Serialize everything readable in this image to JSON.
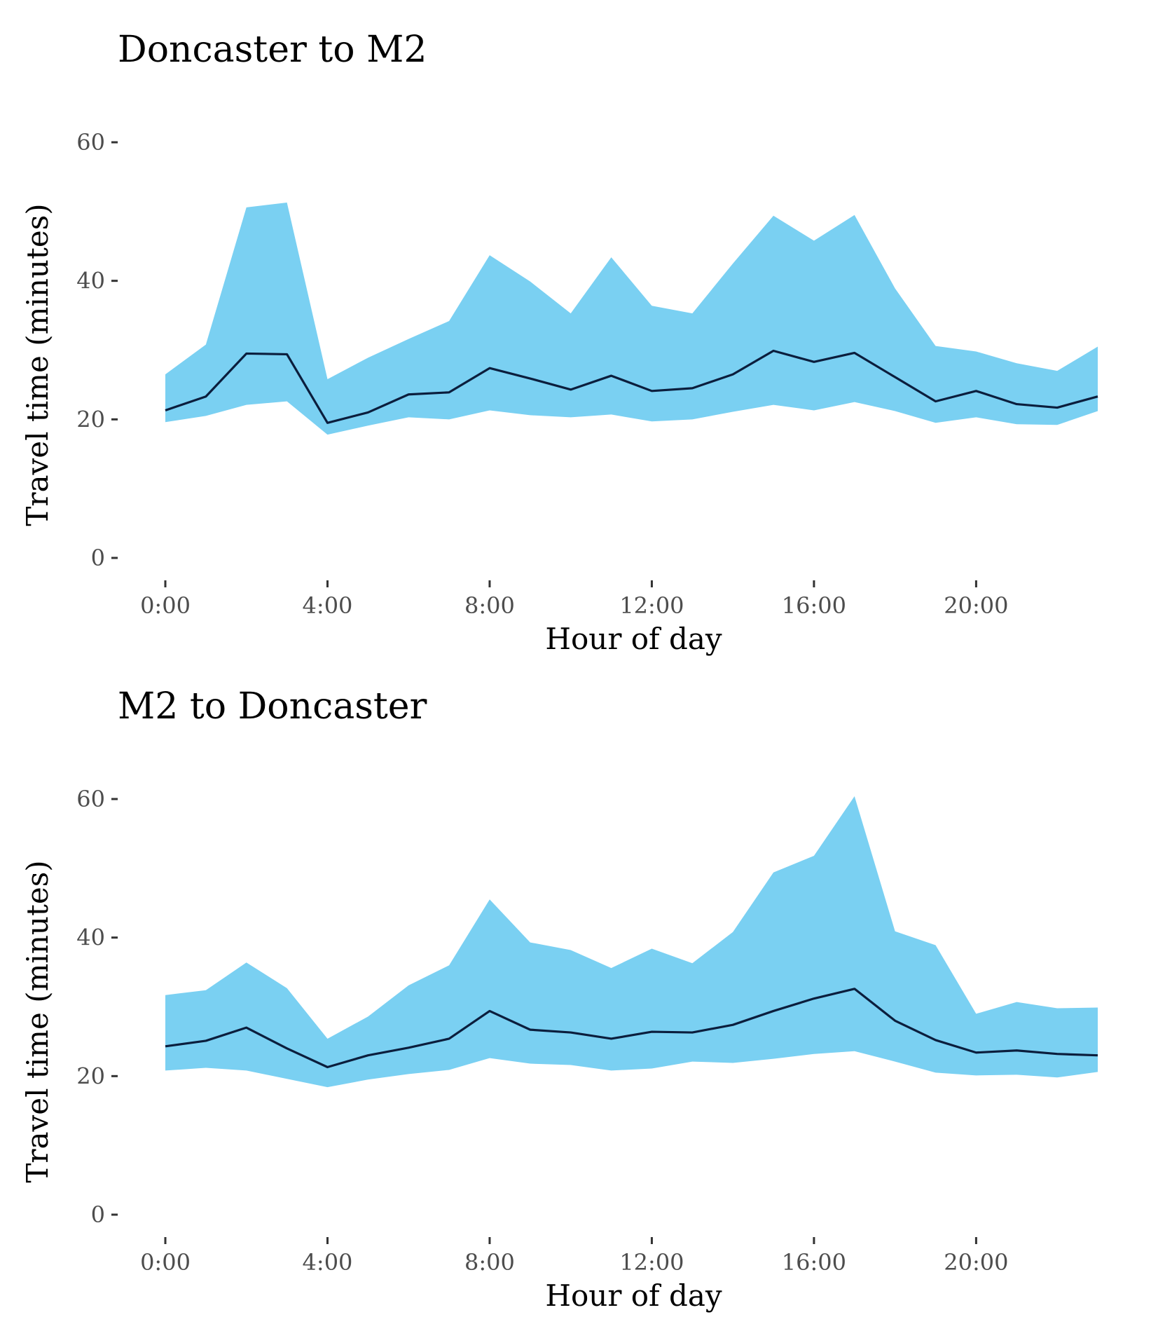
{
  "colors": {
    "band": "#7ad0f2",
    "line": "#0b1e3d",
    "tick_text": "#4d4d4d",
    "title_text": "#000000"
  },
  "chart_data": [
    {
      "type": "area",
      "title": "Doncaster to M2",
      "xlabel": "Hour of day",
      "ylabel": "Travel time (minutes)",
      "x_ticks": [
        0,
        4,
        8,
        12,
        16,
        20
      ],
      "x_tick_labels": [
        "0:00",
        "4:00",
        "8:00",
        "12:00",
        "16:00",
        "20:00"
      ],
      "y_ticks": [
        0,
        20,
        40,
        60
      ],
      "y_tick_labels": [
        "0",
        "20",
        "40",
        "60"
      ],
      "xlim": [
        0,
        23
      ],
      "ylim": [
        0,
        60
      ],
      "grid": false,
      "x": [
        0,
        1,
        2,
        3,
        4,
        5,
        6,
        7,
        8,
        9,
        10,
        11,
        12,
        13,
        14,
        15,
        16,
        17,
        18,
        19,
        20,
        21,
        22,
        23
      ],
      "series": [
        {
          "role": "median",
          "values": [
            21.3,
            23.3,
            29.5,
            29.4,
            19.5,
            21.0,
            23.6,
            23.9,
            27.4,
            25.9,
            24.3,
            26.3,
            24.1,
            24.5,
            26.5,
            29.9,
            28.3,
            29.6,
            26.1,
            22.6,
            24.1,
            22.2,
            21.7,
            23.3
          ]
        },
        {
          "role": "lower",
          "values": [
            19.6,
            20.5,
            22.1,
            22.6,
            17.8,
            19.1,
            20.3,
            20.0,
            21.3,
            20.6,
            20.3,
            20.7,
            19.7,
            20.0,
            21.1,
            22.1,
            21.3,
            22.5,
            21.2,
            19.5,
            20.3,
            19.3,
            19.2,
            21.2
          ]
        },
        {
          "role": "upper",
          "values": [
            26.5,
            30.8,
            50.6,
            51.3,
            25.8,
            28.9,
            31.6,
            34.2,
            43.7,
            39.9,
            35.3,
            43.4,
            36.4,
            35.3,
            42.5,
            49.4,
            45.8,
            49.5,
            38.9,
            30.6,
            29.8,
            28.1,
            27.0,
            30.5
          ]
        }
      ]
    },
    {
      "type": "area",
      "title": "M2 to Doncaster",
      "xlabel": "Hour of day",
      "ylabel": "Travel time (minutes)",
      "x_ticks": [
        0,
        4,
        8,
        12,
        16,
        20
      ],
      "x_tick_labels": [
        "0:00",
        "4:00",
        "8:00",
        "12:00",
        "16:00",
        "20:00"
      ],
      "y_ticks": [
        0,
        20,
        40,
        60
      ],
      "y_tick_labels": [
        "0",
        "20",
        "40",
        "60"
      ],
      "xlim": [
        0,
        23
      ],
      "ylim": [
        0,
        60
      ],
      "grid": false,
      "x": [
        0,
        1,
        2,
        3,
        4,
        5,
        6,
        7,
        8,
        9,
        10,
        11,
        12,
        13,
        14,
        15,
        16,
        17,
        18,
        19,
        20,
        21,
        22,
        23
      ],
      "series": [
        {
          "role": "median",
          "values": [
            24.3,
            25.1,
            27.0,
            24.0,
            21.3,
            23.0,
            24.1,
            25.4,
            29.4,
            26.7,
            26.3,
            25.4,
            26.4,
            26.3,
            27.4,
            29.4,
            31.2,
            32.6,
            28.0,
            25.2,
            23.4,
            23.7,
            23.2,
            23.0
          ]
        },
        {
          "role": "lower",
          "values": [
            20.8,
            21.2,
            20.8,
            19.6,
            18.4,
            19.5,
            20.3,
            20.9,
            22.6,
            21.8,
            21.6,
            20.8,
            21.1,
            22.1,
            21.9,
            22.5,
            23.2,
            23.6,
            22.1,
            20.5,
            20.1,
            20.2,
            19.8,
            20.6
          ]
        },
        {
          "role": "upper",
          "values": [
            31.7,
            32.4,
            36.4,
            32.7,
            25.4,
            28.6,
            33.1,
            36.0,
            45.5,
            39.3,
            38.2,
            35.6,
            38.4,
            36.3,
            40.8,
            49.4,
            51.8,
            60.4,
            40.9,
            38.9,
            29.0,
            30.7,
            29.8,
            29.9
          ]
        }
      ]
    }
  ]
}
